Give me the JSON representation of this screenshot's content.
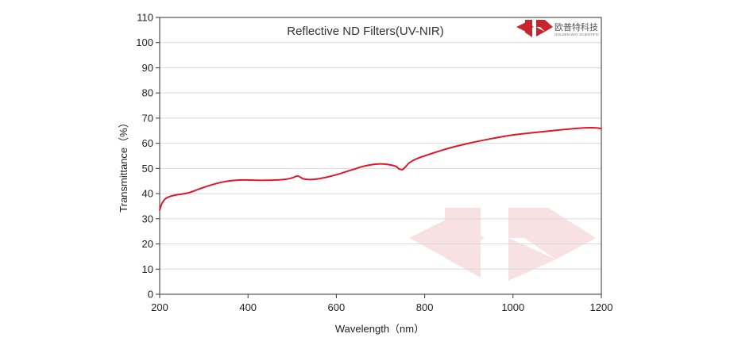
{
  "chart_data": {
    "type": "line",
    "title": "Reflective ND Filters(UV-NIR)",
    "xlabel": "Wavelength（nm）",
    "ylabel": "Transmittance（%）",
    "xlim": [
      200,
      1200
    ],
    "ylim": [
      0,
      110
    ],
    "x_ticks": [
      200,
      400,
      600,
      800,
      1000,
      1200
    ],
    "y_ticks": [
      0,
      10,
      20,
      30,
      40,
      50,
      60,
      70,
      80,
      90,
      100,
      110
    ],
    "grid": true,
    "line_color": "#e0162b",
    "series": [
      {
        "x": [
          200,
          205,
          212,
          222,
          235,
          250,
          265,
          280,
          300,
          320,
          340,
          360,
          380,
          400,
          420,
          440,
          460,
          480,
          495,
          505,
          512,
          518,
          525,
          540,
          560,
          580,
          600,
          620,
          640,
          660,
          680,
          700,
          720,
          735,
          742,
          750,
          757,
          765,
          780,
          800,
          850,
          900,
          950,
          1000,
          1050,
          1100,
          1150,
          1180,
          1200
        ],
        "y": [
          33.5,
          36.0,
          37.8,
          38.8,
          39.4,
          39.8,
          40.3,
          41.2,
          42.5,
          43.6,
          44.5,
          45.1,
          45.4,
          45.4,
          45.3,
          45.3,
          45.4,
          45.6,
          46.0,
          46.6,
          47.0,
          46.6,
          45.9,
          45.6,
          45.9,
          46.6,
          47.5,
          48.6,
          49.7,
          50.8,
          51.5,
          51.8,
          51.5,
          50.8,
          49.8,
          49.6,
          50.7,
          52.2,
          53.7,
          55.0,
          57.8,
          60.0,
          61.8,
          63.3,
          64.3,
          65.2,
          66.0,
          66.2,
          65.9
        ]
      }
    ]
  },
  "logo": {
    "company_cn": "欧普特科技",
    "company_en": "GOLDEN WAY SCIENTIFIC",
    "brand_color": "#c8242b"
  }
}
